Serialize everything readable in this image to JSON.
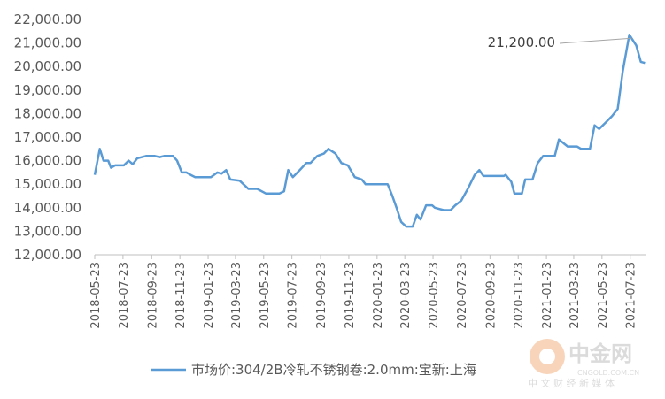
{
  "chart_data": {
    "type": "line",
    "x": [
      "2018-05-23",
      "2018-06-03",
      "2018-06-11",
      "2018-06-21",
      "2018-06-27",
      "2018-07-06",
      "2018-07-25",
      "2018-08-04",
      "2018-08-13",
      "2018-08-23",
      "2018-09-11",
      "2018-09-30",
      "2018-10-10",
      "2018-10-20",
      "2018-11-08",
      "2018-11-17",
      "2018-11-27",
      "2018-12-07",
      "2018-12-16",
      "2018-12-26",
      "2019-01-29",
      "2019-02-12",
      "2019-02-21",
      "2019-03-03",
      "2019-03-12",
      "2019-04-01",
      "2019-04-20",
      "2019-05-09",
      "2019-05-28",
      "2019-06-26",
      "2019-07-06",
      "2019-07-15",
      "2019-07-25",
      "2019-08-09",
      "2019-08-23",
      "2019-09-01",
      "2019-09-16",
      "2019-09-30",
      "2019-10-10",
      "2019-10-25",
      "2019-11-07",
      "2019-11-21",
      "2019-12-06",
      "2019-12-21",
      "2019-12-29",
      "2020-02-15",
      "2020-02-25",
      "2020-03-05",
      "2020-03-15",
      "2020-03-26",
      "2020-04-09",
      "2020-04-18",
      "2020-04-26",
      "2020-05-08",
      "2020-05-21",
      "2020-05-27",
      "2020-06-15",
      "2020-06-30",
      "2020-07-10",
      "2020-07-23",
      "2020-08-06",
      "2020-08-21",
      "2020-08-31",
      "2020-09-09",
      "2020-10-23",
      "2020-10-27",
      "2020-11-08",
      "2020-11-15",
      "2020-12-01",
      "2020-12-08",
      "2020-12-24",
      "2021-01-04",
      "2021-01-16",
      "2021-02-10",
      "2021-02-19",
      "2021-03-10",
      "2021-03-30",
      "2021-04-08",
      "2021-04-27",
      "2021-05-07",
      "2021-05-17",
      "2021-05-30",
      "2021-06-14",
      "2021-06-26",
      "2021-07-07",
      "2021-07-21",
      "2021-07-26",
      "2021-08-05",
      "2021-08-15",
      "2021-08-24"
    ],
    "series": [
      {
        "name": "市场价:304/2B冷轧不锈钢卷:2.0mm:宝新:上海",
        "color": "#5b9bd5",
        "values": [
          15400,
          16500,
          16000,
          16000,
          15700,
          15800,
          15800,
          16000,
          15850,
          16100,
          16200,
          16200,
          16150,
          16200,
          16200,
          16000,
          15500,
          15500,
          15400,
          15300,
          15300,
          15500,
          15450,
          15600,
          15200,
          15150,
          14800,
          14800,
          14600,
          14600,
          14700,
          15600,
          15300,
          15600,
          15900,
          15900,
          16200,
          16300,
          16500,
          16300,
          15900,
          15800,
          15300,
          15200,
          15000,
          15000,
          14500,
          14000,
          13400,
          13200,
          13200,
          13700,
          13500,
          14100,
          14100,
          14000,
          13900,
          13900,
          14100,
          14300,
          14800,
          15400,
          15600,
          15350,
          15350,
          15400,
          15100,
          14600,
          14600,
          15200,
          15200,
          15900,
          16200,
          16200,
          16900,
          16600,
          16600,
          16500,
          16500,
          17500,
          17350,
          17600,
          17900,
          18200,
          19800,
          21350,
          21200,
          20900,
          20200,
          20150
        ]
      }
    ],
    "xlim": [
      "2018-05-23",
      "2021-08-27"
    ],
    "xticks": [
      "2018-05-23",
      "2018-07-23",
      "2018-09-23",
      "2018-11-23",
      "2019-01-23",
      "2019-03-23",
      "2019-05-23",
      "2019-07-23",
      "2019-09-23",
      "2019-11-23",
      "2020-01-23",
      "2020-03-23",
      "2020-05-23",
      "2020-07-23",
      "2020-09-23",
      "2020-11-23",
      "2021-01-23",
      "2021-03-23",
      "2021-05-23",
      "2021-07-23"
    ],
    "ylim": [
      12000,
      22000
    ],
    "yticks": [
      {
        "value": 12000,
        "label": "12,000.00"
      },
      {
        "value": 13000,
        "label": "13,000.00"
      },
      {
        "value": 14000,
        "label": "14,000.00"
      },
      {
        "value": 15000,
        "label": "15,000.00"
      },
      {
        "value": 16000,
        "label": "16,000.00"
      },
      {
        "value": 17000,
        "label": "17,000.00"
      },
      {
        "value": 18000,
        "label": "18,000.00"
      },
      {
        "value": 19000,
        "label": "19,000.00"
      },
      {
        "value": 20000,
        "label": "20,000.00"
      },
      {
        "value": 21000,
        "label": "21,000.00"
      },
      {
        "value": 22000,
        "label": "22,000.00"
      }
    ],
    "annotation": {
      "x": "2021-07-26",
      "value": 21200,
      "label": "21,200.00"
    },
    "legend": "bottom",
    "grid": false
  },
  "watermark": {
    "name": "中金网",
    "url": "CNGOLD.COM.CN",
    "tagline": "中 文 财 经 新 媒 体"
  }
}
